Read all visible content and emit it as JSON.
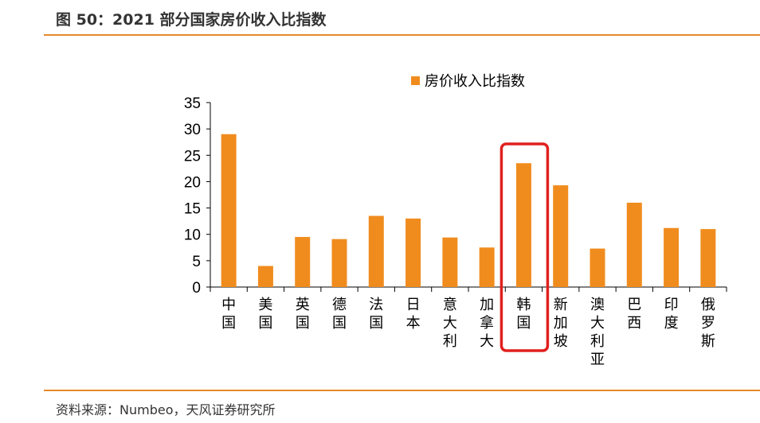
{
  "header": {
    "title": "图 50：2021 部分国家房价收入比指数"
  },
  "footer": {
    "source": "资料来源：Numbeo，天风证券研究所"
  },
  "colors": {
    "bar": "#f08c1e",
    "highlight": "#e0201e",
    "rule": "#e8892a"
  },
  "chart_data": {
    "type": "bar",
    "categories": [
      "中国",
      "美国",
      "英国",
      "德国",
      "法国",
      "日本",
      "意大利",
      "加拿大",
      "韩国",
      "新加坡",
      "澳大利亚",
      "巴西",
      "印度",
      "俄罗斯"
    ],
    "series": [
      {
        "name": "房价收入比指数",
        "values": [
          29.0,
          4.0,
          9.5,
          9.1,
          13.5,
          13.0,
          9.4,
          7.5,
          23.5,
          19.3,
          7.3,
          16.0,
          11.2,
          11.0
        ]
      }
    ],
    "ylim": [
      0,
      35
    ],
    "yticks": [
      0,
      5,
      10,
      15,
      20,
      25,
      30,
      35
    ],
    "legend": "top",
    "grid": false,
    "highlight_category": "韩国"
  }
}
